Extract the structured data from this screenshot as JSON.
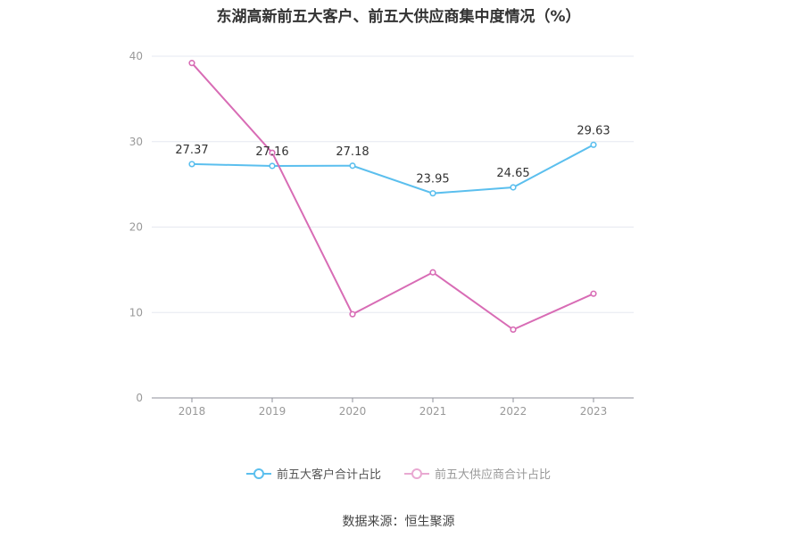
{
  "chart_data": {
    "type": "line",
    "title": "东湖高新前五大客户、前五大供应商集中度情况（%）",
    "categories": [
      "2018",
      "2019",
      "2020",
      "2021",
      "2022",
      "2023"
    ],
    "ylim": [
      0,
      40
    ],
    "yticks": [
      0,
      10,
      20,
      30,
      40
    ],
    "grid": true,
    "legend_position": "bottom-center",
    "series": [
      {
        "name": "前五大客户合计占比",
        "color": "#5bbfee",
        "values": [
          27.37,
          27.16,
          27.18,
          23.95,
          24.65,
          29.63
        ],
        "labels": [
          "27.37",
          "27.16",
          "27.18",
          "23.95",
          "24.65",
          "29.63"
        ]
      },
      {
        "name": "前五大供应商合计占比",
        "color": "#d86cb5",
        "values": [
          39.2,
          28.7,
          9.8,
          14.7,
          8.0,
          12.2
        ],
        "labels": []
      }
    ]
  },
  "footer": {
    "source": "数据来源：恒生聚源"
  }
}
